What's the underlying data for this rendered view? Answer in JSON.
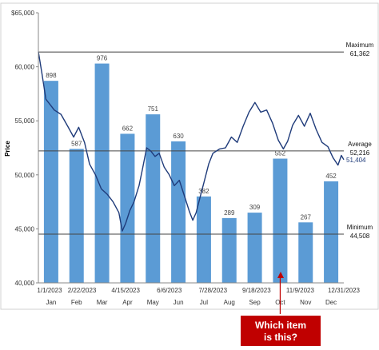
{
  "chart_data": {
    "type": "bar",
    "title": "",
    "xlabel": "",
    "ylabel": "Price",
    "ylim": [
      40000,
      65000
    ],
    "yticks": [
      "40,000",
      "45,000",
      "50,000",
      "55,000",
      "60,000",
      "$65,000"
    ],
    "ytick_values": [
      40000,
      45000,
      50000,
      55000,
      60000,
      65000
    ],
    "grid": false,
    "categories": [
      "Jan",
      "Feb",
      "Mar",
      "Apr",
      "May",
      "Jun",
      "Jul",
      "Aug",
      "Sep",
      "Oct",
      "Nov",
      "Dec"
    ],
    "date_ticks": [
      "1/1/2023",
      "2/22/2023",
      "4/15/2023",
      "6/6/2023",
      "7/28/2023",
      "9/18/2023",
      "11/9/2023",
      "12/31/2023"
    ],
    "series": [
      {
        "type": "bar",
        "values": [
          58700,
          52400,
          60300,
          53800,
          55600,
          53100,
          48000,
          46000,
          46500,
          51500,
          45600,
          49400
        ],
        "labels": [
          "898",
          "587",
          "976",
          "662",
          "751",
          "630",
          "382",
          "289",
          "309",
          "552",
          "267",
          "452"
        ],
        "color": "#5b9bd5"
      },
      {
        "type": "line",
        "color": "#1f3b7a",
        "points": [
          [
            "2023-01-01",
            61400
          ],
          [
            "2023-01-05",
            59500
          ],
          [
            "2023-01-10",
            57000
          ],
          [
            "2023-01-15",
            56500
          ],
          [
            "2023-01-20",
            56000
          ],
          [
            "2023-01-28",
            55600
          ],
          [
            "2023-02-05",
            54500
          ],
          [
            "2023-02-12",
            53500
          ],
          [
            "2023-02-18",
            54400
          ],
          [
            "2023-02-25",
            53000
          ],
          [
            "2023-03-03",
            51000
          ],
          [
            "2023-03-10",
            50000
          ],
          [
            "2023-03-17",
            48700
          ],
          [
            "2023-03-24",
            48200
          ],
          [
            "2023-03-31",
            47500
          ],
          [
            "2023-04-07",
            46500
          ],
          [
            "2023-04-11",
            44800
          ],
          [
            "2023-04-15",
            45500
          ],
          [
            "2023-04-20",
            46700
          ],
          [
            "2023-04-25",
            47500
          ],
          [
            "2023-05-01",
            49000
          ],
          [
            "2023-05-05",
            50500
          ],
          [
            "2023-05-10",
            52500
          ],
          [
            "2023-05-15",
            52200
          ],
          [
            "2023-05-20",
            51700
          ],
          [
            "2023-05-25",
            52000
          ],
          [
            "2023-05-31",
            50700
          ],
          [
            "2023-06-06",
            50000
          ],
          [
            "2023-06-12",
            49000
          ],
          [
            "2023-06-18",
            49500
          ],
          [
            "2023-06-25",
            47800
          ],
          [
            "2023-06-30",
            46600
          ],
          [
            "2023-07-04",
            45800
          ],
          [
            "2023-07-08",
            46500
          ],
          [
            "2023-07-13",
            48000
          ],
          [
            "2023-07-18",
            49500
          ],
          [
            "2023-07-23",
            51000
          ],
          [
            "2023-07-28",
            52000
          ],
          [
            "2023-08-05",
            52400
          ],
          [
            "2023-08-12",
            52500
          ],
          [
            "2023-08-19",
            53500
          ],
          [
            "2023-08-26",
            53000
          ],
          [
            "2023-09-02",
            54500
          ],
          [
            "2023-09-09",
            55800
          ],
          [
            "2023-09-16",
            56700
          ],
          [
            "2023-09-23",
            55800
          ],
          [
            "2023-09-30",
            56000
          ],
          [
            "2023-10-07",
            54800
          ],
          [
            "2023-10-14",
            53200
          ],
          [
            "2023-10-20",
            52400
          ],
          [
            "2023-10-25",
            53100
          ],
          [
            "2023-10-31",
            54600
          ],
          [
            "2023-11-07",
            55500
          ],
          [
            "2023-11-14",
            54500
          ],
          [
            "2023-11-21",
            55700
          ],
          [
            "2023-11-28",
            54200
          ],
          [
            "2023-12-05",
            53000
          ],
          [
            "2023-12-12",
            52600
          ],
          [
            "2023-12-18",
            51600
          ],
          [
            "2023-12-24",
            50900
          ],
          [
            "2023-12-28",
            51800
          ],
          [
            "2023-12-31",
            51404
          ]
        ],
        "last_label": "51,404"
      }
    ],
    "reference_lines": [
      {
        "name": "Maximum",
        "value": 61362,
        "label_value": "61,362"
      },
      {
        "name": "Average",
        "value": 52216,
        "label_value": "52,216"
      },
      {
        "name": "Minimum",
        "value": 44508,
        "label_value": "44,508"
      }
    ],
    "annotation": {
      "text_line1": "Which item",
      "text_line2": "is this?",
      "target_category": "Oct",
      "color": "#c00000"
    },
    "colors": {
      "bar": "#5b9bd5",
      "line": "#1f3b7a",
      "reference": "#444444",
      "callout": "#c00000"
    }
  }
}
